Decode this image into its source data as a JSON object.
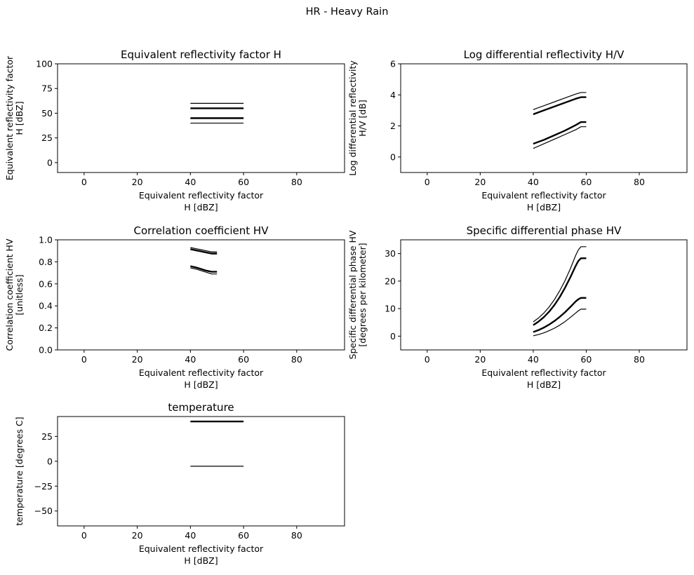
{
  "figure": {
    "suptitle": "HR - Heavy Rain"
  },
  "chart_data": [
    {
      "type": "line",
      "title": "Equivalent reflectivity factor H",
      "xlabel": [
        "Equivalent reflectivity factor",
        "H [dBZ]"
      ],
      "ylabel": [
        "Equivalent reflectivity factor",
        "H [dBZ]"
      ],
      "xlim": [
        -10,
        98
      ],
      "ylim": [
        -10,
        100
      ],
      "xticks": [
        0,
        20,
        40,
        60,
        80
      ],
      "yticks": [
        0,
        25,
        50,
        75,
        100
      ],
      "grid": false,
      "series": [
        {
          "style": "outer",
          "x": [
            40,
            60
          ],
          "y": [
            60,
            60
          ]
        },
        {
          "style": "inner",
          "x": [
            40,
            60
          ],
          "y": [
            55,
            55
          ]
        },
        {
          "style": "inner",
          "x": [
            40,
            60
          ],
          "y": [
            45,
            45
          ]
        },
        {
          "style": "outer",
          "x": [
            40,
            60
          ],
          "y": [
            40,
            40
          ]
        }
      ]
    },
    {
      "type": "line",
      "title": "Log differential reflectivity H/V",
      "xlabel": [
        "Equivalent reflectivity factor",
        "H [dBZ]"
      ],
      "ylabel": [
        "Log differential reflectivity",
        "H/V [dB]"
      ],
      "xlim": [
        -10,
        98
      ],
      "ylim": [
        -1,
        6
      ],
      "xticks": [
        0,
        20,
        40,
        60,
        80
      ],
      "yticks": [
        0,
        2,
        4,
        6
      ],
      "grid": false,
      "series": [
        {
          "style": "outer",
          "x": [
            40,
            44,
            48,
            52,
            56,
            58,
            60
          ],
          "y": [
            3.05,
            3.3,
            3.55,
            3.8,
            4.05,
            4.15,
            4.15
          ]
        },
        {
          "style": "inner",
          "x": [
            40,
            44,
            48,
            52,
            56,
            58,
            60
          ],
          "y": [
            2.75,
            3.0,
            3.25,
            3.5,
            3.75,
            3.85,
            3.85
          ]
        },
        {
          "style": "inner",
          "x": [
            40,
            44,
            48,
            52,
            56,
            58,
            60
          ],
          "y": [
            0.85,
            1.1,
            1.4,
            1.7,
            2.05,
            2.25,
            2.25
          ]
        },
        {
          "style": "outer",
          "x": [
            40,
            44,
            48,
            52,
            56,
            58,
            60
          ],
          "y": [
            0.55,
            0.85,
            1.15,
            1.45,
            1.75,
            1.95,
            1.95
          ]
        }
      ]
    },
    {
      "type": "line",
      "title": "Correlation coefficient HV",
      "xlabel": [
        "Equivalent reflectivity factor",
        "H [dBZ]"
      ],
      "ylabel": [
        "Correlation coefficient HV",
        "[unitless]"
      ],
      "xlim": [
        -10,
        98
      ],
      "ylim": [
        0,
        1
      ],
      "xticks": [
        0,
        20,
        40,
        60,
        80
      ],
      "yticks": [
        0.0,
        0.2,
        0.4,
        0.6,
        0.8,
        1.0
      ],
      "grid": false,
      "series": [
        {
          "style": "outer",
          "x": [
            40,
            42,
            44,
            46,
            48,
            50
          ],
          "y": [
            0.93,
            0.92,
            0.91,
            0.9,
            0.89,
            0.89
          ]
        },
        {
          "style": "inner",
          "x": [
            40,
            42,
            44,
            46,
            48,
            50
          ],
          "y": [
            0.915,
            0.905,
            0.895,
            0.885,
            0.875,
            0.875
          ]
        },
        {
          "style": "inner",
          "x": [
            40,
            42,
            44,
            46,
            48,
            50
          ],
          "y": [
            0.76,
            0.75,
            0.735,
            0.72,
            0.71,
            0.71
          ]
        },
        {
          "style": "outer",
          "x": [
            40,
            42,
            44,
            46,
            48,
            50
          ],
          "y": [
            0.745,
            0.735,
            0.72,
            0.705,
            0.69,
            0.69
          ]
        }
      ]
    },
    {
      "type": "line",
      "title": "Specific differential phase HV",
      "xlabel": [
        "Equivalent reflectivity factor",
        "H [dBZ]"
      ],
      "ylabel": [
        "Specific differential phase HV",
        "[degrees per kilometer]"
      ],
      "xlim": [
        -10,
        98
      ],
      "ylim": [
        -5,
        35
      ],
      "xticks": [
        0,
        20,
        40,
        60,
        80
      ],
      "yticks": [
        0,
        10,
        20,
        30
      ],
      "grid": false,
      "series": [
        {
          "style": "outer",
          "x": [
            40,
            42,
            44,
            46,
            48,
            50,
            52,
            54,
            56,
            57,
            58,
            60
          ],
          "y": [
            5.2,
            6.6,
            8.4,
            10.6,
            13.3,
            16.5,
            20.2,
            24.5,
            29.3,
            31.3,
            32.5,
            32.5
          ]
        },
        {
          "style": "inner",
          "x": [
            40,
            42,
            44,
            46,
            48,
            50,
            52,
            54,
            56,
            57,
            58,
            60
          ],
          "y": [
            4.0,
            5.3,
            6.9,
            8.9,
            11.3,
            14.2,
            17.6,
            21.4,
            25.5,
            27.3,
            28.3,
            28.3
          ]
        },
        {
          "style": "inner",
          "x": [
            40,
            42,
            44,
            46,
            48,
            50,
            52,
            54,
            56,
            57,
            58,
            60
          ],
          "y": [
            1.5,
            2.2,
            3.1,
            4.2,
            5.5,
            7.0,
            8.7,
            10.6,
            12.6,
            13.4,
            13.9,
            13.9
          ]
        },
        {
          "style": "outer",
          "x": [
            40,
            42,
            44,
            46,
            48,
            50,
            52,
            54,
            56,
            57,
            58,
            60
          ],
          "y": [
            0.1,
            0.6,
            1.2,
            2.0,
            2.9,
            4.0,
            5.3,
            6.8,
            8.4,
            9.2,
            9.8,
            9.8
          ]
        }
      ]
    },
    {
      "type": "line",
      "title": "temperature",
      "xlabel": [
        "Equivalent reflectivity factor",
        "H [dBZ]"
      ],
      "ylabel": [
        "temperature [degrees C]"
      ],
      "xlim": [
        -10,
        98
      ],
      "ylim": [
        -65,
        45
      ],
      "xticks": [
        0,
        20,
        40,
        60,
        80
      ],
      "yticks": [
        -50,
        -25,
        0,
        25
      ],
      "grid": false,
      "series": [
        {
          "style": "inner",
          "x": [
            40,
            60
          ],
          "y": [
            40,
            40
          ]
        },
        {
          "style": "outer",
          "x": [
            40,
            60
          ],
          "y": [
            -5,
            -5
          ]
        }
      ]
    }
  ]
}
